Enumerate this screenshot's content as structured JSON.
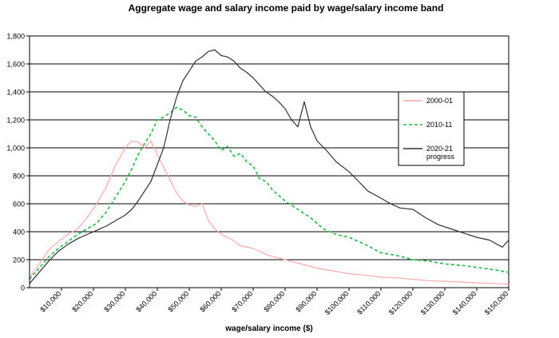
{
  "chart_data": {
    "type": "line",
    "title": "Aggregate wage and salary income paid by wage/salary income band",
    "xlabel": "wage/salary income ($)",
    "ylabel": "",
    "xlim": [
      0,
      150000
    ],
    "ylim": [
      0,
      1800
    ],
    "grid": true,
    "legend_position": "right",
    "yticks": [
      {
        "value": 0,
        "label": "0"
      },
      {
        "value": 200,
        "label": "200"
      },
      {
        "value": 400,
        "label": "400"
      },
      {
        "value": 600,
        "label": "600"
      },
      {
        "value": 800,
        "label": "800"
      },
      {
        "value": 1000,
        "label": "1,000"
      },
      {
        "value": 1200,
        "label": "1,200"
      },
      {
        "value": 1400,
        "label": "1,400"
      },
      {
        "value": 1600,
        "label": "1,600"
      },
      {
        "value": 1800,
        "label": "1,800"
      }
    ],
    "xticks": [
      {
        "value": 10000,
        "label": "$10,000"
      },
      {
        "value": 20000,
        "label": "$20,000"
      },
      {
        "value": 30000,
        "label": "$30,000"
      },
      {
        "value": 40000,
        "label": "$40,000"
      },
      {
        "value": 50000,
        "label": "$50,000"
      },
      {
        "value": 60000,
        "label": "$60,000"
      },
      {
        "value": 70000,
        "label": "$70,000"
      },
      {
        "value": 80000,
        "label": "$80,000"
      },
      {
        "value": 90000,
        "label": "$90,000"
      },
      {
        "value": 100000,
        "label": "$100,000"
      },
      {
        "value": 110000,
        "label": "$110,000"
      },
      {
        "value": 120000,
        "label": "$120,000"
      },
      {
        "value": 130000,
        "label": "$130,000"
      },
      {
        "value": 140000,
        "label": "$140,000"
      },
      {
        "value": 150000,
        "label": "$150,000"
      }
    ],
    "series": [
      {
        "name": "2000-01",
        "color": "#ffaaaa",
        "style": "solid",
        "x": [
          0,
          3000,
          6000,
          9000,
          12000,
          15000,
          18000,
          21000,
          24000,
          27000,
          30000,
          32000,
          34000,
          36000,
          38000,
          40000,
          42000,
          44000,
          46000,
          48000,
          50000,
          52000,
          54000,
          56000,
          58000,
          60000,
          63000,
          66000,
          70000,
          75000,
          80000,
          85000,
          90000,
          95000,
          100000,
          105000,
          110000,
          115000,
          120000,
          125000,
          130000,
          135000,
          140000,
          145000,
          150000
        ],
        "y": [
          70,
          170,
          270,
          330,
          380,
          420,
          500,
          600,
          720,
          880,
          1000,
          1050,
          1040,
          1000,
          1050,
          950,
          860,
          770,
          680,
          620,
          590,
          580,
          600,
          480,
          420,
          380,
          350,
          300,
          280,
          230,
          200,
          170,
          140,
          120,
          100,
          90,
          75,
          70,
          60,
          50,
          45,
          40,
          35,
          30,
          25
        ]
      },
      {
        "name": "2010-11",
        "color": "#22bb44",
        "style": "dashed",
        "x": [
          0,
          3000,
          6000,
          9000,
          12000,
          15000,
          18000,
          21000,
          24000,
          27000,
          30000,
          32000,
          34000,
          36000,
          38000,
          40000,
          42000,
          44000,
          46000,
          48000,
          50000,
          52000,
          54000,
          56000,
          58000,
          60000,
          62000,
          64000,
          66000,
          68000,
          70000,
          72000,
          74000,
          76000,
          78000,
          80000,
          84000,
          88000,
          92000,
          96000,
          100000,
          105000,
          110000,
          115000,
          120000,
          125000,
          130000,
          135000,
          140000,
          145000,
          150000
        ],
        "y": [
          60,
          140,
          220,
          280,
          330,
          380,
          420,
          460,
          540,
          650,
          760,
          850,
          950,
          1030,
          1100,
          1200,
          1220,
          1250,
          1290,
          1270,
          1230,
          1220,
          1150,
          1100,
          1050,
          980,
          1010,
          940,
          960,
          900,
          870,
          780,
          760,
          700,
          660,
          620,
          560,
          500,
          420,
          380,
          360,
          310,
          250,
          230,
          200,
          190,
          170,
          160,
          145,
          130,
          110
        ]
      },
      {
        "name": "2020-21 progress",
        "color": "#333333",
        "style": "solid",
        "x": [
          0,
          3000,
          6000,
          9000,
          12000,
          15000,
          18000,
          21000,
          24000,
          27000,
          30000,
          32000,
          34000,
          36000,
          38000,
          40000,
          42000,
          44000,
          46000,
          48000,
          50000,
          52000,
          54000,
          56000,
          58000,
          60000,
          62000,
          64000,
          66000,
          68000,
          70000,
          72000,
          74000,
          76000,
          78000,
          80000,
          82000,
          84000,
          86000,
          88000,
          90000,
          93000,
          96000,
          100000,
          103000,
          106000,
          110000,
          113000,
          116000,
          120000,
          124000,
          128000,
          132000,
          136000,
          140000,
          144000,
          148000,
          150000
        ],
        "y": [
          30,
          110,
          190,
          260,
          310,
          350,
          380,
          410,
          440,
          480,
          520,
          560,
          620,
          690,
          760,
          880,
          1000,
          1200,
          1360,
          1480,
          1550,
          1620,
          1650,
          1690,
          1700,
          1660,
          1650,
          1620,
          1570,
          1540,
          1500,
          1450,
          1400,
          1370,
          1330,
          1280,
          1200,
          1150,
          1330,
          1150,
          1050,
          980,
          900,
          830,
          760,
          690,
          640,
          600,
          570,
          560,
          500,
          450,
          420,
          390,
          360,
          340,
          290,
          340
        ]
      }
    ]
  }
}
